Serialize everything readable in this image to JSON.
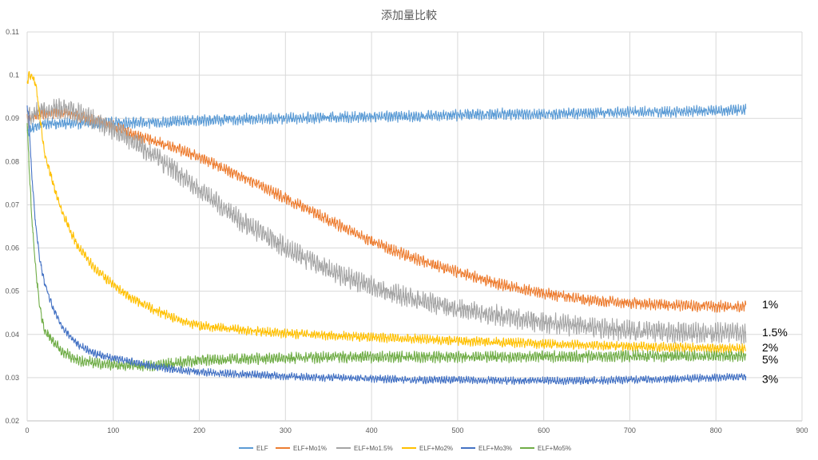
{
  "chart_data": {
    "type": "line",
    "title": "添加量比較",
    "xlabel": "",
    "ylabel": "",
    "xlim": [
      0,
      900
    ],
    "ylim": [
      0.02,
      0.11
    ],
    "x_ticks": [
      "0",
      "100",
      "200",
      "300",
      "400",
      "500",
      "600",
      "700",
      "800",
      "900"
    ],
    "y_ticks": [
      "0.02",
      "0.03",
      "0.04",
      "0.05",
      "0.06",
      "0.07",
      "0.08",
      "0.09",
      "0.1",
      "0.11"
    ],
    "grid": true,
    "legend_position": "bottom",
    "x": [
      0,
      2,
      5,
      10,
      15,
      20,
      30,
      40,
      50,
      60,
      80,
      100,
      120,
      150,
      175,
      200,
      250,
      300,
      350,
      400,
      450,
      500,
      550,
      600,
      650,
      700,
      750,
      800,
      835
    ],
    "series": [
      {
        "name": "ELF",
        "color": "#5b9bd5",
        "noise": 0.0012,
        "values": [
          0.087,
          0.087,
          0.0875,
          0.088,
          0.0885,
          0.0888,
          0.0888,
          0.0888,
          0.0888,
          0.0888,
          0.089,
          0.089,
          0.089,
          0.089,
          0.0893,
          0.0895,
          0.0898,
          0.09,
          0.0902,
          0.0905,
          0.0905,
          0.0908,
          0.091,
          0.091,
          0.0912,
          0.0915,
          0.0915,
          0.0918,
          0.092
        ]
      },
      {
        "name": "ELF+Mo1%",
        "color": "#ed7d31",
        "noise": 0.0012,
        "values": [
          0.09,
          0.09,
          0.09,
          0.0905,
          0.091,
          0.091,
          0.0912,
          0.0912,
          0.091,
          0.0905,
          0.0895,
          0.0882,
          0.0865,
          0.0845,
          0.083,
          0.081,
          0.0765,
          0.0715,
          0.0665,
          0.0615,
          0.0575,
          0.0545,
          0.0515,
          0.0495,
          0.048,
          0.0472,
          0.0468,
          0.0465,
          0.0465
        ]
      },
      {
        "name": "ELF+Mo1.5%",
        "color": "#a5a5a5",
        "noise": 0.0022,
        "values": [
          0.09,
          0.09,
          0.0905,
          0.091,
          0.0915,
          0.092,
          0.0922,
          0.0922,
          0.092,
          0.0912,
          0.0895,
          0.0875,
          0.085,
          0.081,
          0.0775,
          0.0735,
          0.066,
          0.06,
          0.055,
          0.051,
          0.048,
          0.046,
          0.0442,
          0.0428,
          0.0418,
          0.041,
          0.0405,
          0.0403,
          0.0402
        ]
      },
      {
        "name": "ELF+Mo2%",
        "color": "#ffc000",
        "noise": 0.001,
        "values": [
          0.098,
          0.1,
          0.1,
          0.098,
          0.09,
          0.082,
          0.075,
          0.0685,
          0.064,
          0.06,
          0.055,
          0.0515,
          0.0485,
          0.0455,
          0.0435,
          0.042,
          0.041,
          0.0402,
          0.0398,
          0.0393,
          0.039,
          0.0385,
          0.0382,
          0.0378,
          0.0375,
          0.0372,
          0.037,
          0.0368,
          0.0368
        ]
      },
      {
        "name": "ELF+Mo3%",
        "color": "#4472c4",
        "noise": 0.0008,
        "values": [
          0.093,
          0.09,
          0.078,
          0.065,
          0.057,
          0.052,
          0.046,
          0.042,
          0.0395,
          0.0375,
          0.0355,
          0.0345,
          0.0338,
          0.0325,
          0.0318,
          0.0313,
          0.0308,
          0.0303,
          0.03,
          0.0298,
          0.0295,
          0.0295,
          0.0293,
          0.0293,
          0.0293,
          0.0295,
          0.0297,
          0.03,
          0.0302
        ]
      },
      {
        "name": "ELF+Mo5%",
        "color": "#70ad47",
        "noise": 0.0012,
        "values": [
          0.089,
          0.08,
          0.068,
          0.055,
          0.046,
          0.041,
          0.0385,
          0.0362,
          0.035,
          0.034,
          0.0333,
          0.033,
          0.0328,
          0.0328,
          0.0335,
          0.034,
          0.0343,
          0.0345,
          0.0347,
          0.0348,
          0.0348,
          0.0348,
          0.0348,
          0.0349,
          0.0349,
          0.035,
          0.035,
          0.035,
          0.035
        ]
      }
    ],
    "annotations": [
      {
        "text": "1%",
        "x_at": 835,
        "y_at": 0.047
      },
      {
        "text": "1.5%",
        "x_at": 835,
        "y_at": 0.0405
      },
      {
        "text": "2%",
        "x_at": 835,
        "y_at": 0.037
      },
      {
        "text": "5%",
        "x_at": 835,
        "y_at": 0.0342
      },
      {
        "text": "3%",
        "x_at": 835,
        "y_at": 0.0297
      }
    ]
  }
}
